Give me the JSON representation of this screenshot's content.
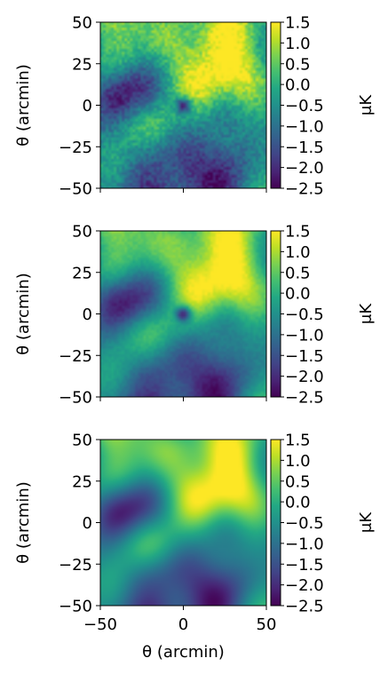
{
  "chart_data": [
    {
      "type": "heatmap",
      "ylabel": "θ (arcmin)",
      "xlabel": "",
      "x_range": [
        -50,
        50
      ],
      "y_range": [
        -50,
        50
      ],
      "yticks": [
        "50",
        "25",
        "0",
        "−25",
        "−50"
      ],
      "colorbar": {
        "label": "μK",
        "range": [
          -2.5,
          1.5
        ],
        "ticks": [
          "1.5",
          "1.0",
          "0.5",
          "0.0",
          "−0.5",
          "−1.0",
          "−1.5",
          "−2.0",
          "−2.5"
        ]
      },
      "colormap": "viridis",
      "features": {
        "cold_spot_center": [
          0,
          0
        ],
        "hot_region_center": [
          15,
          30
        ],
        "cold_region_center": [
          20,
          -35
        ]
      }
    },
    {
      "type": "heatmap",
      "ylabel": "θ (arcmin)",
      "xlabel": "",
      "x_range": [
        -50,
        50
      ],
      "y_range": [
        -50,
        50
      ],
      "yticks": [
        "50",
        "25",
        "0",
        "−25",
        "−50"
      ],
      "colorbar": {
        "label": "μK",
        "range": [
          -2.5,
          1.5
        ],
        "ticks": [
          "1.5",
          "1.0",
          "0.5",
          "0.0",
          "−0.5",
          "−1.0",
          "−1.5",
          "−2.0",
          "−2.5"
        ]
      },
      "colormap": "viridis",
      "features": {
        "cold_spot_center": [
          0,
          0
        ],
        "hot_region_center": [
          15,
          30
        ],
        "cold_region_center": [
          20,
          -35
        ]
      }
    },
    {
      "type": "heatmap",
      "ylabel": "θ (arcmin)",
      "xlabel": "θ (arcmin)",
      "x_range": [
        -50,
        50
      ],
      "y_range": [
        -50,
        50
      ],
      "xticks": [
        "−50",
        "0",
        "50"
      ],
      "yticks": [
        "50",
        "25",
        "0",
        "−25",
        "−50"
      ],
      "colorbar": {
        "label": "μK",
        "range": [
          -2.5,
          1.5
        ],
        "ticks": [
          "1.5",
          "1.0",
          "0.5",
          "0.0",
          "−0.5",
          "−1.0",
          "−1.5",
          "−2.0",
          "−2.5"
        ]
      },
      "colormap": "viridis",
      "features": {
        "hot_region_center": [
          15,
          30
        ],
        "cold_region_center": [
          20,
          -35
        ]
      }
    }
  ],
  "colors": {
    "viridis": [
      "#440154",
      "#482475",
      "#414487",
      "#355f8d",
      "#2a788e",
      "#21918c",
      "#22a884",
      "#44bf70",
      "#7ad151",
      "#bddf26",
      "#fde725"
    ]
  }
}
